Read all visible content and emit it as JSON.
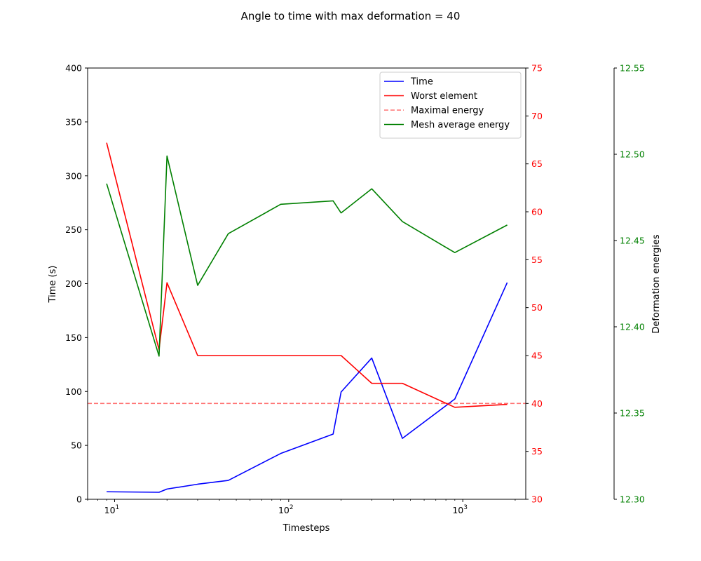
{
  "chart_data": {
    "type": "line",
    "title": "Angle to time with max deformation = 40",
    "xlabel": "Timesteps",
    "x_scale": "log",
    "xlim": [
      7,
      2300
    ],
    "x_ticks": [
      10,
      100,
      1000
    ],
    "x_tick_labels": [
      "10",
      "10",
      "10"
    ],
    "x_tick_exponents": [
      "1",
      "2",
      "3"
    ],
    "axes": {
      "left": {
        "label": "Time (s)",
        "ylim": [
          0,
          400
        ],
        "ticks": [
          0,
          50,
          100,
          150,
          200,
          250,
          300,
          350,
          400
        ],
        "color": "#000000"
      },
      "right1": {
        "label": "",
        "ylim": [
          30,
          75
        ],
        "ticks": [
          30,
          35,
          40,
          45,
          50,
          55,
          60,
          65,
          70,
          75
        ],
        "color": "#ff0000"
      },
      "right2": {
        "label": "Deformation energies",
        "ylim": [
          12.3,
          12.55
        ],
        "ticks": [
          "12.30",
          "12.35",
          "12.40",
          "12.45",
          "12.50",
          "12.55"
        ],
        "color": "#008000"
      }
    },
    "series": [
      {
        "name": "Time",
        "axis": "left",
        "color": "#0000ff",
        "style": "solid",
        "x": [
          9,
          18,
          20,
          30,
          45,
          90,
          180,
          200,
          300,
          450,
          900,
          1800
        ],
        "y": [
          7,
          6.5,
          9.5,
          14,
          17.5,
          42.5,
          60.5,
          99.5,
          131,
          56.5,
          93,
          201
        ]
      },
      {
        "name": "Worst element",
        "axis": "right1",
        "color": "#ff0000",
        "style": "solid",
        "x": [
          9,
          18,
          20,
          30,
          45,
          90,
          180,
          200,
          300,
          450,
          900,
          1800
        ],
        "y": [
          67.2,
          45.6,
          52.6,
          45.0,
          45.0,
          45.0,
          45.0,
          45.0,
          42.1,
          42.1,
          39.6,
          39.9
        ]
      },
      {
        "name": "Maximal energy",
        "axis": "right1",
        "color": "#ff0000",
        "style": "dashed",
        "opacity": 0.55,
        "x": [
          7,
          2300
        ],
        "y": [
          40,
          40
        ]
      },
      {
        "name": "Mesh average energy",
        "axis": "right2",
        "color": "#008000",
        "style": "solid",
        "x": [
          9,
          18,
          20,
          30,
          45,
          90,
          180,
          200,
          300,
          450,
          900,
          1800
        ],
        "y": [
          12.483,
          12.383,
          12.499,
          12.424,
          12.454,
          12.471,
          12.473,
          12.466,
          12.48,
          12.461,
          12.443,
          12.459
        ]
      }
    ],
    "legend": {
      "placement": "top-right"
    },
    "grid": false
  }
}
